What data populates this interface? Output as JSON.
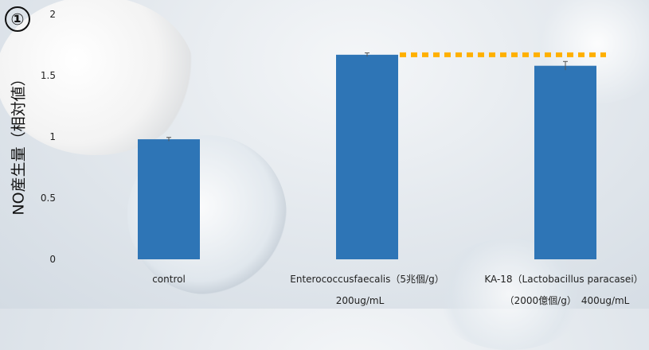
{
  "badge": "①",
  "chart_data": {
    "type": "bar",
    "title": "",
    "ylabel": "NO産生量（相対値）",
    "xlabel": "",
    "ylim": [
      0,
      2
    ],
    "yticks": [
      0,
      0.5,
      1,
      1.5,
      2
    ],
    "categories": [
      {
        "lines": [
          "control"
        ]
      },
      {
        "lines": [
          "Enterococcusfaecalis（5兆個/g）",
          "200ug/mL"
        ]
      },
      {
        "lines": [
          "KA-18（Lactobacillus paracasei）",
          "（2000億個/g）　400ug/mL"
        ]
      }
    ],
    "values": [
      0.98,
      1.67,
      1.58
    ],
    "errors": [
      0.015,
      0.015,
      0.035
    ],
    "bar_color": "#2e75b6",
    "reference_line": {
      "from_category": 1,
      "to_category": 2,
      "value": 1.67,
      "color": "#ffb000",
      "style": "dashed"
    },
    "grid": false,
    "legend": "none"
  }
}
